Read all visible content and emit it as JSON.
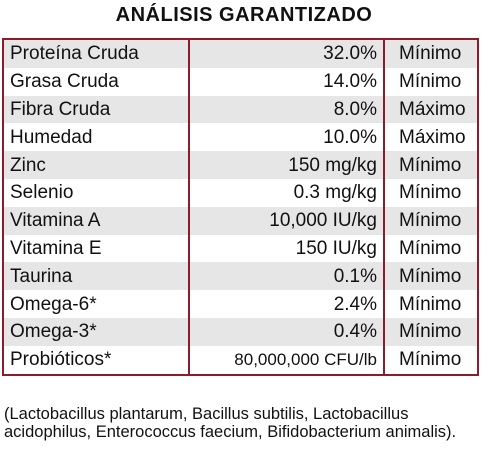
{
  "header": {
    "title": "ANÁLISIS GARANTIZADO"
  },
  "table": {
    "rows": [
      [
        "Proteína Cruda",
        "32.0%",
        "Mínimo"
      ],
      [
        "Grasa Cruda",
        "14.0%",
        "Mínimo"
      ],
      [
        "Fibra Cruda",
        "8.0%",
        "Máximo"
      ],
      [
        "Humedad",
        "10.0%",
        "Máximo"
      ],
      [
        "Zinc",
        "150 mg/kg",
        "Mínimo"
      ],
      [
        "Selenio",
        "0.3 mg/kg",
        "Mínimo"
      ],
      [
        "Vitamina A",
        "10,000 IU/kg",
        "Mínimo"
      ],
      [
        "Vitamina E",
        "150 IU/kg",
        "Mínimo"
      ],
      [
        "Taurina",
        "0.1%",
        "Mínimo"
      ],
      [
        "Omega-6*",
        "2.4%",
        "Mínimo"
      ],
      [
        "Omega-3*",
        "0.4%",
        "Mínimo"
      ],
      [
        "Probióticos*",
        "80,000,000 CFU/lb",
        "Mínimo"
      ]
    ]
  },
  "footnote": "(Lactobacillus plantarum, Bacillus subtilis, Lactobacillus acidophilus, Enterococcus faecium, Bifidobacterium animalis)."
}
